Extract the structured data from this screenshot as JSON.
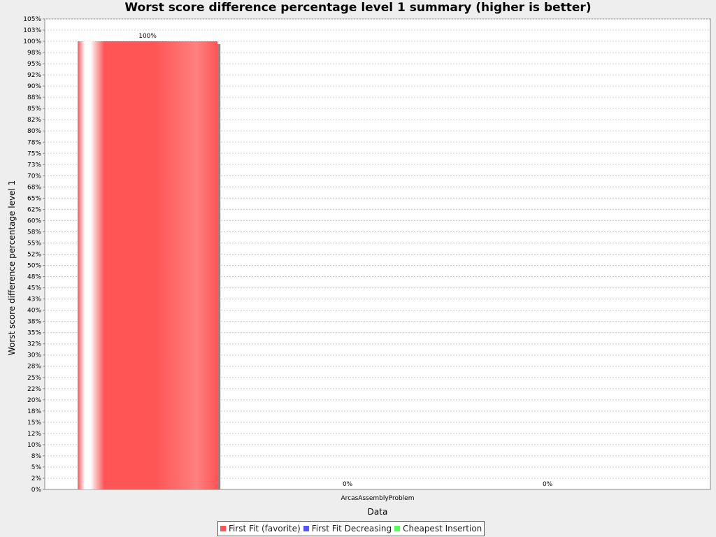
{
  "chart_data": {
    "type": "bar",
    "title": "Worst score difference percentage level 1 summary (higher is better)",
    "xlabel": "Data",
    "ylabel": "Worst score difference percentage level 1",
    "categories": [
      "ArcasAssemblyProblem"
    ],
    "series": [
      {
        "name": "First Fit (favorite)",
        "values": [
          100
        ],
        "color": "#ff5555",
        "value_labels": [
          "100%"
        ]
      },
      {
        "name": "First Fit Decreasing",
        "values": [
          0
        ],
        "color": "#5555ff",
        "value_labels": [
          "0%"
        ]
      },
      {
        "name": "Cheapest Insertion",
        "values": [
          0
        ],
        "color": "#55ff55",
        "value_labels": [
          "0%"
        ]
      }
    ],
    "ylim": [
      0,
      105
    ],
    "yticks": [
      "0%",
      "2%",
      "5%",
      "8%",
      "10%",
      "12%",
      "15%",
      "18%",
      "20%",
      "22%",
      "25%",
      "28%",
      "30%",
      "32%",
      "35%",
      "38%",
      "40%",
      "43%",
      "45%",
      "48%",
      "50%",
      "52%",
      "55%",
      "58%",
      "60%",
      "62%",
      "65%",
      "68%",
      "70%",
      "73%",
      "75%",
      "78%",
      "80%",
      "82%",
      "85%",
      "88%",
      "90%",
      "92%",
      "95%",
      "98%",
      "100%",
      "103%",
      "105%"
    ],
    "grid": true,
    "legend_position": "bottom"
  }
}
